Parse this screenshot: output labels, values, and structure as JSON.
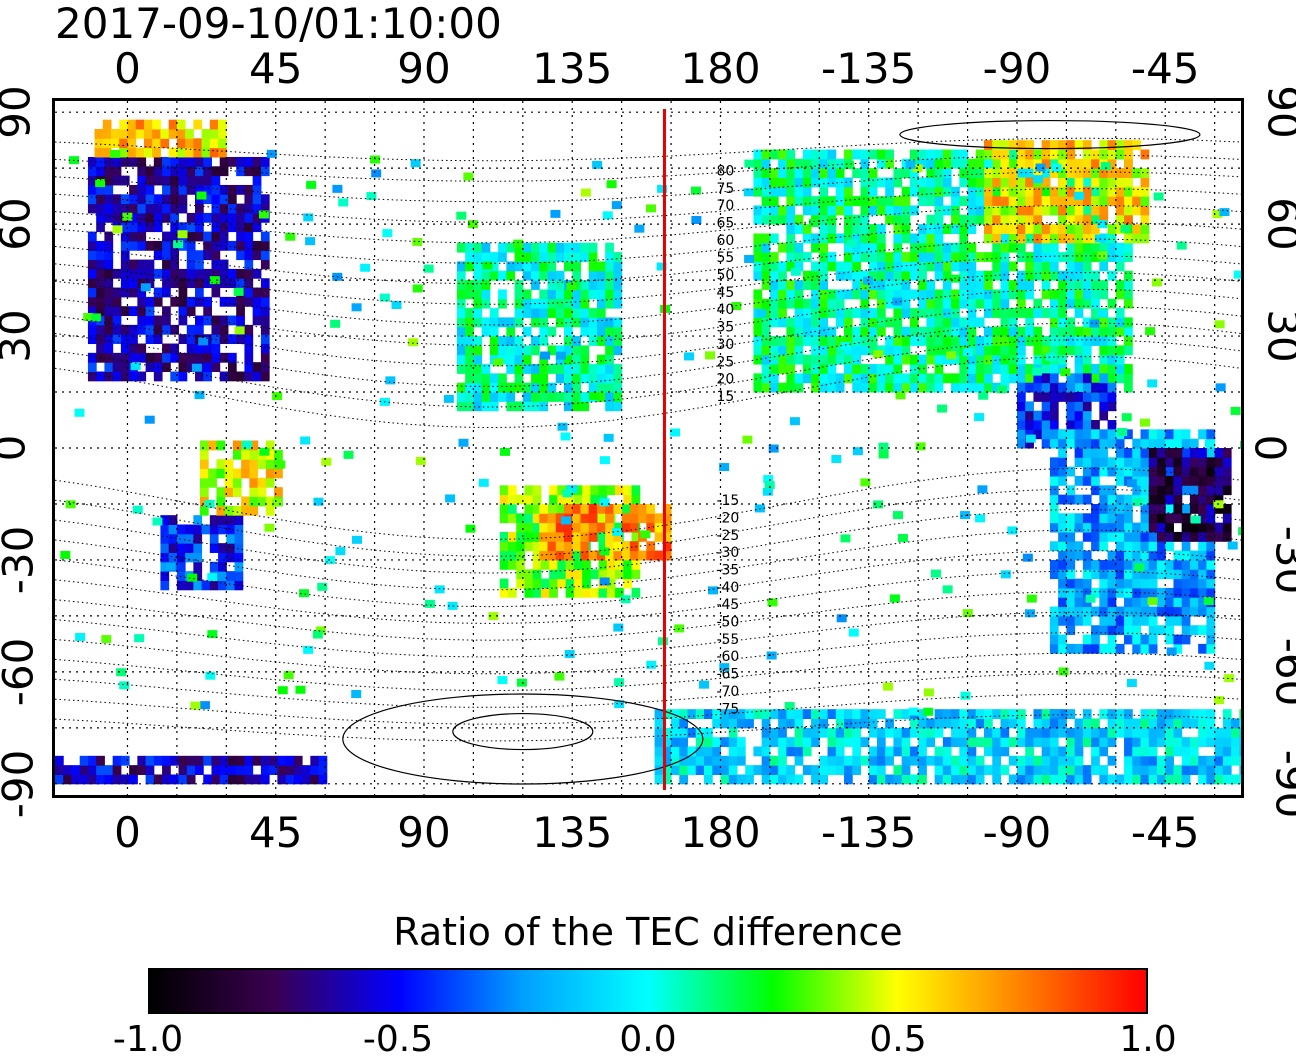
{
  "timestamp": "2017-09-10/01:10:00",
  "map": {
    "x_ticks": [
      "0",
      "45",
      "90",
      "135",
      "180",
      "-135",
      "-90",
      "-45"
    ],
    "x_tick_lons": [
      0,
      45,
      90,
      135,
      180,
      225,
      270,
      315
    ],
    "y_ticks": [
      "90",
      "60",
      "30",
      "0",
      "-30",
      "-60",
      "-90"
    ],
    "y_tick_lats": [
      90,
      60,
      30,
      0,
      -30,
      -60,
      -90
    ],
    "lon_range": [
      -22,
      338
    ],
    "lat_range": [
      -93,
      93
    ],
    "reference_line_lon": 163,
    "reference_line_color": "#e60000",
    "contour_labels": [
      "80",
      "75",
      "70",
      "65",
      "60",
      "55",
      "50",
      "45",
      "40",
      "35",
      "30",
      "25",
      "20",
      "15",
      "-15",
      "-20",
      "-25",
      "-30",
      "-35",
      "-40",
      "-45",
      "-50",
      "-55",
      "-60",
      "-65",
      "-70",
      "-75"
    ],
    "contour_label_lats": [
      80,
      75,
      70,
      65,
      60,
      55,
      50,
      45,
      40,
      35,
      30,
      25,
      20,
      15,
      -15,
      -20,
      -25,
      -30,
      -35,
      -40,
      -45,
      -50,
      -55,
      -60,
      -65,
      -70,
      -75
    ]
  },
  "colorbar": {
    "title": "Ratio of the TEC difference",
    "tick_labels": [
      "-1.0",
      "-0.5",
      "0.0",
      "0.5",
      "1.0"
    ],
    "tick_values": [
      -1.0,
      -0.5,
      0.0,
      0.5,
      1.0
    ],
    "range": [
      -1.0,
      1.0
    ],
    "colors": [
      "#000000",
      "#3a0050",
      "#0000ff",
      "#00a0ff",
      "#00ffff",
      "#00ff00",
      "#ffff00",
      "#ff8000",
      "#ff0000"
    ]
  },
  "regions": [
    {
      "name": "europe",
      "lon": [
        -12,
        42
      ],
      "lat": [
        18,
        78
      ],
      "value": -0.6
    },
    {
      "name": "arctic-europe",
      "lon": [
        -10,
        30
      ],
      "lat": [
        78,
        86
      ],
      "value": 0.6
    },
    {
      "name": "south-africa",
      "lon": [
        10,
        35
      ],
      "lat": [
        -38,
        -18
      ],
      "value": -0.45
    },
    {
      "name": "east-africa",
      "lon": [
        22,
        45
      ],
      "lat": [
        -18,
        2
      ],
      "value": 0.5
    },
    {
      "name": "east-asia",
      "lon": [
        100,
        150
      ],
      "lat": [
        10,
        55
      ],
      "value": 0.05
    },
    {
      "name": "australia",
      "lon": [
        113,
        155
      ],
      "lat": [
        -40,
        -12
      ],
      "value": 0.35
    },
    {
      "name": "australia-north",
      "lon": [
        125,
        165
      ],
      "lat": [
        -30,
        -15
      ],
      "value": 0.7
    },
    {
      "name": "north-america",
      "lon": [
        190,
        305
      ],
      "lat": [
        15,
        80
      ],
      "value": 0.1
    },
    {
      "name": "canada-east",
      "lon": [
        260,
        310
      ],
      "lat": [
        55,
        82
      ],
      "value": 0.55
    },
    {
      "name": "central-america",
      "lon": [
        270,
        300
      ],
      "lat": [
        0,
        20
      ],
      "value": -0.45
    },
    {
      "name": "south-america",
      "lon": [
        280,
        330
      ],
      "lat": [
        -55,
        5
      ],
      "value": -0.2
    },
    {
      "name": "brazil-east",
      "lon": [
        310,
        335
      ],
      "lat": [
        -25,
        0
      ],
      "value": -0.75
    },
    {
      "name": "antarctica",
      "lon": [
        160,
        338
      ],
      "lat": [
        -90,
        -70
      ],
      "value": -0.1
    },
    {
      "name": "antarctica-west",
      "lon": [
        -22,
        60
      ],
      "lat": [
        -90,
        -84
      ],
      "value": -0.6
    }
  ]
}
